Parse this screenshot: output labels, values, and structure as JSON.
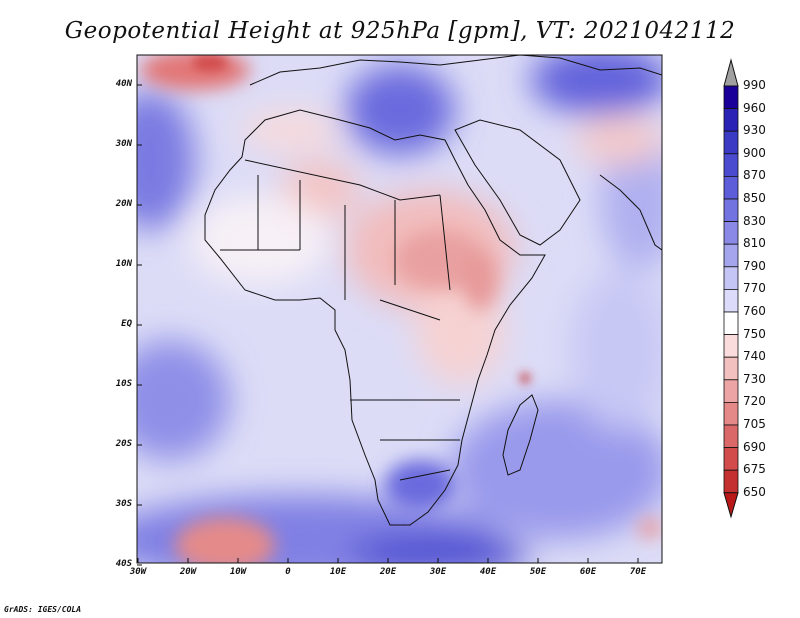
{
  "title": "Geopotential Height at 925hPa [gpm], VT: 2021042112",
  "footer": "GrADS: IGES/COLA",
  "map": {
    "region": "Africa",
    "lat_ticks": [
      "40N",
      "30N",
      "20N",
      "10N",
      "EQ",
      "10S",
      "20S",
      "30S",
      "40S"
    ],
    "lon_ticks": [
      "30W",
      "20W",
      "10W",
      "0",
      "10E",
      "20E",
      "30E",
      "40E",
      "50E",
      "60E",
      "70E"
    ]
  },
  "colorbar": {
    "levels": [
      "990",
      "960",
      "930",
      "900",
      "870",
      "850",
      "830",
      "810",
      "790",
      "770",
      "760",
      "750",
      "740",
      "730",
      "720",
      "705",
      "690",
      "675",
      "650"
    ],
    "colors": [
      "#a0a0a0",
      "#1a0099",
      "#2a22b4",
      "#3a3ac4",
      "#4b4bd0",
      "#5d5dda",
      "#7272e0",
      "#8a8ae6",
      "#a5a5ee",
      "#c4c4f5",
      "#dcdcfa",
      "#ffffff",
      "#fbdcdc",
      "#f3c0c0",
      "#eca4a4",
      "#e48888",
      "#db6868",
      "#d24c4c",
      "#c42f2f",
      "#b81818"
    ]
  }
}
